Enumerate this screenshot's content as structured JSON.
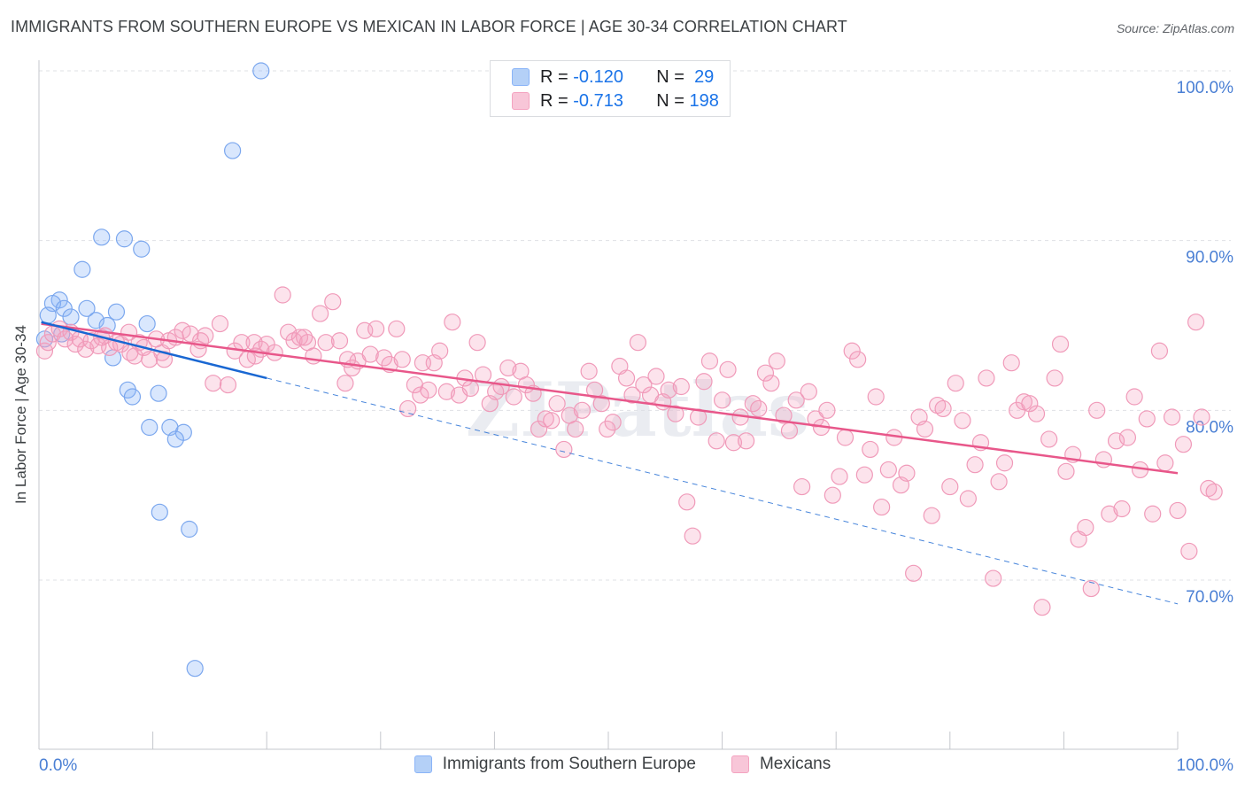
{
  "chart_data": {
    "type": "scatter",
    "title": "IMMIGRANTS FROM SOUTHERN EUROPE VS MEXICAN IN LABOR FORCE | AGE 30-34 CORRELATION CHART",
    "source": "Source: ZipAtlas.com",
    "ylabel": "In Labor Force | Age 30-34",
    "xlim": [
      0,
      100
    ],
    "ylim": [
      60.5,
      103
    ],
    "x_tick_labels": [
      "0.0%",
      "100.0%"
    ],
    "y_ticks": [
      {
        "value": 100,
        "label": "100.0%"
      },
      {
        "value": 90,
        "label": "90.0%"
      },
      {
        "value": 80,
        "label": "80.0%"
      },
      {
        "value": 70,
        "label": "70.0%"
      }
    ],
    "grid": "horizontal dashed",
    "legend_position": "top-center",
    "watermark": "ZIPatlas",
    "series": [
      {
        "name": "Immigrants from Southern Europe",
        "color": "#8ab4f8",
        "line_color": "#1967d2",
        "R": "-0.120",
        "N": "29",
        "trend": {
          "x": [
            0.2,
            20
          ],
          "y": [
            85.2,
            81.9
          ]
        },
        "trend_extension": {
          "x": [
            20,
            100
          ],
          "y": [
            81.9,
            68.6
          ]
        },
        "points": [
          [
            19.5,
            100.0
          ],
          [
            17.0,
            95.3
          ],
          [
            5.5,
            90.2
          ],
          [
            7.5,
            90.1
          ],
          [
            9.0,
            89.5
          ],
          [
            3.8,
            88.3
          ],
          [
            1.8,
            86.5
          ],
          [
            1.2,
            86.3
          ],
          [
            2.2,
            86.0
          ],
          [
            4.2,
            86.0
          ],
          [
            6.8,
            85.8
          ],
          [
            0.8,
            85.6
          ],
          [
            2.8,
            85.5
          ],
          [
            5.0,
            85.3
          ],
          [
            9.5,
            85.1
          ],
          [
            6.0,
            85.0
          ],
          [
            2.0,
            84.5
          ],
          [
            0.5,
            84.2
          ],
          [
            6.5,
            83.1
          ],
          [
            7.8,
            81.2
          ],
          [
            8.2,
            80.8
          ],
          [
            10.5,
            81.0
          ],
          [
            9.7,
            79.0
          ],
          [
            11.5,
            79.0
          ],
          [
            12.7,
            78.7
          ],
          [
            12.0,
            78.3
          ],
          [
            10.6,
            74.0
          ],
          [
            13.2,
            73.0
          ],
          [
            13.7,
            64.8
          ]
        ]
      },
      {
        "name": "Mexicans",
        "color": "#f4a3c0",
        "line_color": "#e8578a",
        "R": "-0.713",
        "N": "198",
        "trend": {
          "x": [
            0.2,
            100
          ],
          "y": [
            85.1,
            76.3
          ]
        },
        "points": [
          [
            0.5,
            83.5
          ],
          [
            0.8,
            84.0
          ],
          [
            1.2,
            84.5
          ],
          [
            1.8,
            84.8
          ],
          [
            2.3,
            84.2
          ],
          [
            2.8,
            84.6
          ],
          [
            3.2,
            83.9
          ],
          [
            3.6,
            84.2
          ],
          [
            4.1,
            83.6
          ],
          [
            4.6,
            84.1
          ],
          [
            5.2,
            83.8
          ],
          [
            5.8,
            84.4
          ],
          [
            6.2,
            83.7
          ],
          [
            6.8,
            84.0
          ],
          [
            7.2,
            83.9
          ],
          [
            7.9,
            84.6
          ],
          [
            8.4,
            83.2
          ],
          [
            8.8,
            84.0
          ],
          [
            9.2,
            83.7
          ],
          [
            9.7,
            83.0
          ],
          [
            10.3,
            84.2
          ],
          [
            10.8,
            83.4
          ],
          [
            11.4,
            84.1
          ],
          [
            12.0,
            84.3
          ],
          [
            12.6,
            84.7
          ],
          [
            13.3,
            84.5
          ],
          [
            14.0,
            83.6
          ],
          [
            14.6,
            84.4
          ],
          [
            15.3,
            81.6
          ],
          [
            15.9,
            85.1
          ],
          [
            16.6,
            81.5
          ],
          [
            17.2,
            83.5
          ],
          [
            17.8,
            84.0
          ],
          [
            18.3,
            83.0
          ],
          [
            18.9,
            84.0
          ],
          [
            19.5,
            83.6
          ],
          [
            20.0,
            83.9
          ],
          [
            20.7,
            83.4
          ],
          [
            21.4,
            86.8
          ],
          [
            21.9,
            84.6
          ],
          [
            22.4,
            84.1
          ],
          [
            22.9,
            84.3
          ],
          [
            23.6,
            84.0
          ],
          [
            24.1,
            83.2
          ],
          [
            24.7,
            85.7
          ],
          [
            25.2,
            84.0
          ],
          [
            25.8,
            86.4
          ],
          [
            26.4,
            84.1
          ],
          [
            26.9,
            81.6
          ],
          [
            27.5,
            82.5
          ],
          [
            28.0,
            82.9
          ],
          [
            28.6,
            84.7
          ],
          [
            29.1,
            83.3
          ],
          [
            29.6,
            84.8
          ],
          [
            30.3,
            83.1
          ],
          [
            30.8,
            82.7
          ],
          [
            31.4,
            84.8
          ],
          [
            31.9,
            83.0
          ],
          [
            32.4,
            80.1
          ],
          [
            33.0,
            81.5
          ],
          [
            33.5,
            80.9
          ],
          [
            34.2,
            81.2
          ],
          [
            34.7,
            82.8
          ],
          [
            35.2,
            83.5
          ],
          [
            35.8,
            81.1
          ],
          [
            36.3,
            85.2
          ],
          [
            36.9,
            80.9
          ],
          [
            37.4,
            81.9
          ],
          [
            37.9,
            81.3
          ],
          [
            38.5,
            84.0
          ],
          [
            39.0,
            82.1
          ],
          [
            39.6,
            80.4
          ],
          [
            40.1,
            81.1
          ],
          [
            40.6,
            81.4
          ],
          [
            41.2,
            82.5
          ],
          [
            41.7,
            80.8
          ],
          [
            42.3,
            82.3
          ],
          [
            42.8,
            81.5
          ],
          [
            43.4,
            81.0
          ],
          [
            43.9,
            78.9
          ],
          [
            44.5,
            79.5
          ],
          [
            45.0,
            79.4
          ],
          [
            45.5,
            80.4
          ],
          [
            46.1,
            77.7
          ],
          [
            46.6,
            79.7
          ],
          [
            47.1,
            78.9
          ],
          [
            47.7,
            80.0
          ],
          [
            48.3,
            82.3
          ],
          [
            48.8,
            81.2
          ],
          [
            49.4,
            80.4
          ],
          [
            49.9,
            78.9
          ],
          [
            50.4,
            79.3
          ],
          [
            51.0,
            82.6
          ],
          [
            51.6,
            81.9
          ],
          [
            52.1,
            80.9
          ],
          [
            52.6,
            84.0
          ],
          [
            53.1,
            81.5
          ],
          [
            53.7,
            80.9
          ],
          [
            54.2,
            82.0
          ],
          [
            54.8,
            80.5
          ],
          [
            55.3,
            81.2
          ],
          [
            55.9,
            79.8
          ],
          [
            56.4,
            81.4
          ],
          [
            56.9,
            74.6
          ],
          [
            57.4,
            72.6
          ],
          [
            57.9,
            79.6
          ],
          [
            58.4,
            81.7
          ],
          [
            58.9,
            82.9
          ],
          [
            59.5,
            78.2
          ],
          [
            60.0,
            80.6
          ],
          [
            60.5,
            82.4
          ],
          [
            61.0,
            78.1
          ],
          [
            61.6,
            79.6
          ],
          [
            62.1,
            78.2
          ],
          [
            62.7,
            80.4
          ],
          [
            63.2,
            80.1
          ],
          [
            63.8,
            82.2
          ],
          [
            64.3,
            81.6
          ],
          [
            64.8,
            82.9
          ],
          [
            65.4,
            79.7
          ],
          [
            65.9,
            78.8
          ],
          [
            66.5,
            80.6
          ],
          [
            67.0,
            75.5
          ],
          [
            67.6,
            81.1
          ],
          [
            68.2,
            79.5
          ],
          [
            68.7,
            79.0
          ],
          [
            69.2,
            80.0
          ],
          [
            69.7,
            75.0
          ],
          [
            70.3,
            76.1
          ],
          [
            70.8,
            78.4
          ],
          [
            71.4,
            83.5
          ],
          [
            71.9,
            83.0
          ],
          [
            72.5,
            76.2
          ],
          [
            73.0,
            77.7
          ],
          [
            73.5,
            80.8
          ],
          [
            74.0,
            74.3
          ],
          [
            74.6,
            76.5
          ],
          [
            75.1,
            78.4
          ],
          [
            75.7,
            75.6
          ],
          [
            76.2,
            76.3
          ],
          [
            76.8,
            70.4
          ],
          [
            77.3,
            79.6
          ],
          [
            77.8,
            78.9
          ],
          [
            78.4,
            73.8
          ],
          [
            78.9,
            80.3
          ],
          [
            79.4,
            80.1
          ],
          [
            80.0,
            75.5
          ],
          [
            80.5,
            81.6
          ],
          [
            81.1,
            79.4
          ],
          [
            81.6,
            74.8
          ],
          [
            82.2,
            76.8
          ],
          [
            82.7,
            78.1
          ],
          [
            83.2,
            81.9
          ],
          [
            83.8,
            70.1
          ],
          [
            84.3,
            75.8
          ],
          [
            84.8,
            76.9
          ],
          [
            85.4,
            82.8
          ],
          [
            85.9,
            80.0
          ],
          [
            86.5,
            80.5
          ],
          [
            87.0,
            80.4
          ],
          [
            87.6,
            79.8
          ],
          [
            88.1,
            68.4
          ],
          [
            88.7,
            78.3
          ],
          [
            89.2,
            81.9
          ],
          [
            89.7,
            83.9
          ],
          [
            90.2,
            76.4
          ],
          [
            90.8,
            77.4
          ],
          [
            91.3,
            72.4
          ],
          [
            91.9,
            73.1
          ],
          [
            92.4,
            69.5
          ],
          [
            92.9,
            80.0
          ],
          [
            93.5,
            77.1
          ],
          [
            94.0,
            73.9
          ],
          [
            94.6,
            78.2
          ],
          [
            95.1,
            74.2
          ],
          [
            95.6,
            78.4
          ],
          [
            96.2,
            80.8
          ],
          [
            96.7,
            76.5
          ],
          [
            97.3,
            79.5
          ],
          [
            97.8,
            73.9
          ],
          [
            98.4,
            83.5
          ],
          [
            98.9,
            76.9
          ],
          [
            99.5,
            79.6
          ],
          [
            100.0,
            74.1
          ],
          [
            100.5,
            78.0
          ],
          [
            101.0,
            71.7
          ],
          [
            101.6,
            85.2
          ],
          [
            102.1,
            79.6
          ],
          [
            102.7,
            75.4
          ],
          [
            103.2,
            75.2
          ],
          [
            5.5,
            84.3
          ],
          [
            8.0,
            83.4
          ],
          [
            11.0,
            83.0
          ],
          [
            14.2,
            84.1
          ],
          [
            19.0,
            83.2
          ],
          [
            23.3,
            84.3
          ],
          [
            27.1,
            83.0
          ],
          [
            33.7,
            82.8
          ]
        ]
      }
    ]
  },
  "legend": {
    "rows": [
      {
        "r_label": "R =",
        "r_value": "-0.120",
        "n_label": "N =",
        "n_value": "29"
      },
      {
        "r_label": "R =",
        "r_value": "-0.713",
        "n_label": "N =",
        "n_value": "198"
      }
    ]
  },
  "bottom_legend": [
    "Immigrants from Southern Europe",
    "Mexicans"
  ]
}
